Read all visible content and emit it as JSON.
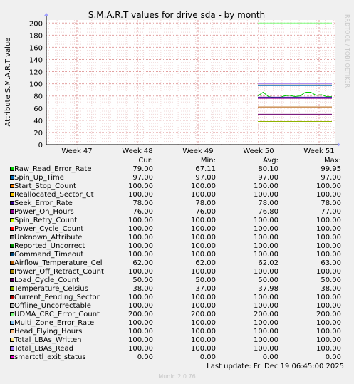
{
  "chart_data": {
    "type": "line",
    "title": "S.M.A.R.T values for drive sda - by month",
    "ylabel": "Attribute S.M.A.R.T value",
    "watermark": "RRDTOOL / TOBI OETIKER",
    "ylim": [
      0,
      205
    ],
    "yticks": [
      0,
      20,
      40,
      60,
      80,
      100,
      120,
      140,
      160,
      180,
      200
    ],
    "x_categories": [
      "Week 47",
      "Week 48",
      "Week 49",
      "Week 50",
      "Week 51"
    ],
    "grid": true,
    "legend_headers": {
      "cur": "Cur:",
      "min": "Min:",
      "avg": "Avg:",
      "max": "Max:"
    },
    "series": [
      {
        "name": "Raw_Read_Error_Rate",
        "color": "#00cc00",
        "cur": "79.00",
        "min": "67.11",
        "avg": "80.10",
        "max": "99.95"
      },
      {
        "name": "Spin_Up_Time",
        "color": "#0066b3",
        "cur": "97.00",
        "min": "97.00",
        "avg": "97.00",
        "max": "97.00"
      },
      {
        "name": "Start_Stop_Count",
        "color": "#ff8000",
        "cur": "100.00",
        "min": "100.00",
        "avg": "100.00",
        "max": "100.00"
      },
      {
        "name": "Reallocated_Sector_Ct",
        "color": "#ffcc00",
        "cur": "100.00",
        "min": "100.00",
        "avg": "100.00",
        "max": "100.00"
      },
      {
        "name": "Seek_Error_Rate",
        "color": "#330099",
        "cur": "78.00",
        "min": "78.00",
        "avg": "78.00",
        "max": "78.00"
      },
      {
        "name": "Power_On_Hours",
        "color": "#990099",
        "cur": "76.00",
        "min": "76.00",
        "avg": "76.80",
        "max": "77.00"
      },
      {
        "name": "Spin_Retry_Count",
        "color": "#ccff00",
        "cur": "100.00",
        "min": "100.00",
        "avg": "100.00",
        "max": "100.00"
      },
      {
        "name": "Power_Cycle_Count",
        "color": "#ff0000",
        "cur": "100.00",
        "min": "100.00",
        "avg": "100.00",
        "max": "100.00"
      },
      {
        "name": "Unknown_Attribute",
        "color": "#808080",
        "cur": "100.00",
        "min": "100.00",
        "avg": "100.00",
        "max": "100.00"
      },
      {
        "name": "Reported_Uncorrect",
        "color": "#008f00",
        "cur": "100.00",
        "min": "100.00",
        "avg": "100.00",
        "max": "100.00"
      },
      {
        "name": "Command_Timeout",
        "color": "#00487d",
        "cur": "100.00",
        "min": "100.00",
        "avg": "100.00",
        "max": "100.00"
      },
      {
        "name": "Airflow_Temperature_Cel",
        "color": "#b35a00",
        "cur": "62.00",
        "min": "62.00",
        "avg": "62.02",
        "max": "63.00"
      },
      {
        "name": "Power_Off_Retract_Count",
        "color": "#b38f00",
        "cur": "100.00",
        "min": "100.00",
        "avg": "100.00",
        "max": "100.00"
      },
      {
        "name": "Load_Cycle_Count",
        "color": "#6b006b",
        "cur": "50.00",
        "min": "50.00",
        "avg": "50.00",
        "max": "50.00"
      },
      {
        "name": "Temperature_Celsius",
        "color": "#8fb300",
        "cur": "38.00",
        "min": "37.00",
        "avg": "37.98",
        "max": "38.00"
      },
      {
        "name": "Current_Pending_Sector",
        "color": "#b30000",
        "cur": "100.00",
        "min": "100.00",
        "avg": "100.00",
        "max": "100.00"
      },
      {
        "name": "Offline_Uncorrectable",
        "color": "#bebebe",
        "cur": "100.00",
        "min": "100.00",
        "avg": "100.00",
        "max": "100.00"
      },
      {
        "name": "UDMA_CRC_Error_Count",
        "color": "#80ff80",
        "cur": "200.00",
        "min": "200.00",
        "avg": "200.00",
        "max": "200.00"
      },
      {
        "name": "Multi_Zone_Error_Rate",
        "color": "#80c9ff",
        "cur": "100.00",
        "min": "100.00",
        "avg": "100.00",
        "max": "100.00"
      },
      {
        "name": "Head_Flying_Hours",
        "color": "#ffc080",
        "cur": "100.00",
        "min": "100.00",
        "avg": "100.00",
        "max": "100.00"
      },
      {
        "name": "Total_LBAs_Written",
        "color": "#ffe680",
        "cur": "100.00",
        "min": "100.00",
        "avg": "100.00",
        "max": "100.00"
      },
      {
        "name": "Total_LBAs_Read",
        "color": "#aa80ff",
        "cur": "100.00",
        "min": "100.00",
        "avg": "100.00",
        "max": "100.00"
      },
      {
        "name": "smartctl_exit_status",
        "color": "#ee00cc",
        "cur": "0.00",
        "min": "0.00",
        "avg": "0.00",
        "max": "0.00"
      }
    ]
  },
  "footer": {
    "last_update": "Last update: Fri Dec 19 06:45:00 2025",
    "version": "Munin 2.0.76"
  }
}
